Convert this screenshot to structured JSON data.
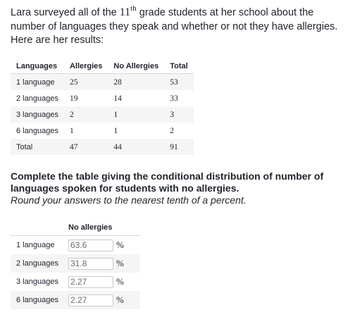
{
  "intro": {
    "part1": "Lara surveyed all of the ",
    "grade_number": "11",
    "grade_suffix": "th",
    "part2": " grade students at her school about the number of languages they speak and whether or not they have allergies. Here are her results:"
  },
  "results_table": {
    "headers": [
      "Languages",
      "Allergies",
      "No Allergies",
      "Total"
    ],
    "rows": [
      [
        "1 language",
        "25",
        "28",
        "53"
      ],
      [
        "2 languages",
        "19",
        "14",
        "33"
      ],
      [
        "3 languages",
        "2",
        "1",
        "3"
      ],
      [
        "6 languages",
        "1",
        "1",
        "2"
      ],
      [
        "Total",
        "47",
        "44",
        "91"
      ]
    ]
  },
  "question": {
    "instruction": "Complete the table giving the conditional distribution of number of languages spoken for students with no allergies.",
    "rounding_note": "Round your answers to the nearest tenth of a percent."
  },
  "answer_table": {
    "header": "No allergies",
    "unit": "%",
    "rows": [
      {
        "label": "1 language",
        "value": "63.6"
      },
      {
        "label": "2 languages",
        "value": "31.8"
      },
      {
        "label": "3 languages",
        "value": "2.27"
      },
      {
        "label": "6 languages",
        "value": "2.27"
      }
    ]
  }
}
